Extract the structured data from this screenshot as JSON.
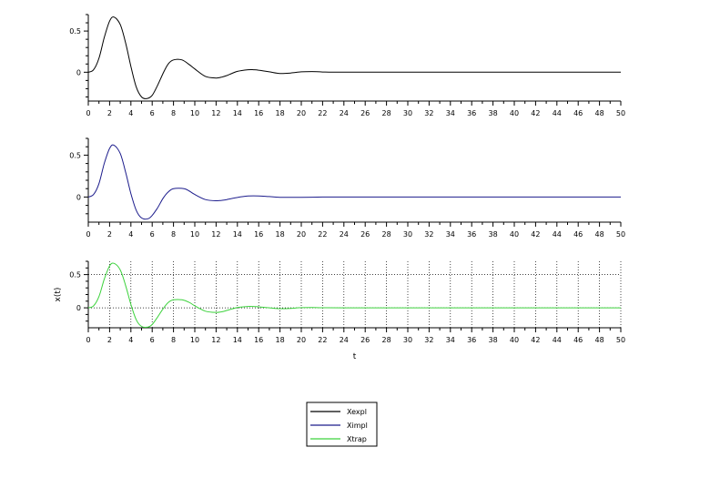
{
  "figure": {
    "legend": {
      "placement": "bottom-center",
      "entries": [
        {
          "label": "Xexpl",
          "color": "#000000"
        },
        {
          "label": "Ximpl",
          "color": "#1c1c8c"
        },
        {
          "label": "Xtrap",
          "color": "#3cd23c"
        }
      ]
    }
  },
  "chart_data": [
    {
      "type": "line",
      "title": "",
      "xlabel": "",
      "ylabel": "",
      "xlim": [
        0,
        50
      ],
      "ylim": [
        -0.35,
        0.7
      ],
      "xticks": [
        0,
        2,
        4,
        6,
        8,
        10,
        12,
        14,
        16,
        18,
        20,
        22,
        24,
        26,
        28,
        30,
        32,
        34,
        36,
        38,
        40,
        42,
        44,
        46,
        48,
        50
      ],
      "yticks": [
        0.5,
        0,
        -0.5
      ],
      "ytick_labels": [
        "0.5",
        "0",
        ""
      ],
      "grid": false,
      "series": [
        {
          "name": "Xexpl",
          "color": "#000000",
          "x": [
            0,
            0.5,
            1,
            1.5,
            2,
            2.4,
            3,
            3.5,
            4,
            4.5,
            5,
            5.5,
            6,
            6.5,
            7,
            7.5,
            8,
            8.8,
            9.5,
            10,
            11,
            12,
            12.5,
            13,
            14,
            15,
            15.5,
            16,
            17,
            18,
            19,
            20,
            21,
            22,
            24,
            30,
            40,
            50
          ],
          "y": [
            0,
            0.03,
            0.17,
            0.42,
            0.62,
            0.67,
            0.58,
            0.36,
            0.07,
            -0.18,
            -0.3,
            -0.32,
            -0.28,
            -0.16,
            -0.02,
            0.1,
            0.15,
            0.15,
            0.09,
            0.04,
            -0.05,
            -0.07,
            -0.06,
            -0.04,
            0.01,
            0.03,
            0.03,
            0.025,
            0.005,
            -0.015,
            -0.01,
            0.005,
            0.008,
            0.003,
            0,
            0,
            0,
            0
          ]
        }
      ]
    },
    {
      "type": "line",
      "title": "",
      "xlabel": "",
      "ylabel": "",
      "xlim": [
        0,
        50
      ],
      "ylim": [
        -0.3,
        0.7
      ],
      "xticks": [
        0,
        2,
        4,
        6,
        8,
        10,
        12,
        14,
        16,
        18,
        20,
        22,
        24,
        26,
        28,
        30,
        32,
        34,
        36,
        38,
        40,
        42,
        44,
        46,
        48,
        50
      ],
      "yticks": [
        0.5,
        0
      ],
      "ytick_labels": [
        "0.5",
        "0"
      ],
      "grid": false,
      "series": [
        {
          "name": "Ximpl",
          "color": "#1c1c8c",
          "x": [
            0,
            0.5,
            1,
            1.5,
            2,
            2.4,
            3,
            3.5,
            4,
            4.5,
            5,
            5.6,
            6,
            6.5,
            7,
            7.5,
            8,
            9,
            9.5,
            10,
            11,
            12,
            12.5,
            13,
            14,
            15,
            16,
            17,
            18,
            20,
            22,
            24,
            30,
            40,
            50
          ],
          "y": [
            0,
            0.03,
            0.16,
            0.4,
            0.58,
            0.62,
            0.52,
            0.3,
            0.04,
            -0.16,
            -0.25,
            -0.26,
            -0.22,
            -0.13,
            -0.02,
            0.06,
            0.1,
            0.1,
            0.07,
            0.03,
            -0.03,
            -0.045,
            -0.04,
            -0.03,
            -0.005,
            0.012,
            0.013,
            0.005,
            -0.003,
            -0.004,
            0,
            0,
            0,
            0,
            0
          ]
        }
      ]
    },
    {
      "type": "line",
      "title": "",
      "xlabel": "t",
      "ylabel": "x(t)",
      "xlim": [
        0,
        50
      ],
      "ylim": [
        -0.3,
        0.7
      ],
      "xticks": [
        0,
        2,
        4,
        6,
        8,
        10,
        12,
        14,
        16,
        18,
        20,
        22,
        24,
        26,
        28,
        30,
        32,
        34,
        36,
        38,
        40,
        42,
        44,
        46,
        48,
        50
      ],
      "yticks": [
        0.5,
        0
      ],
      "ytick_labels": [
        "0.5",
        "0"
      ],
      "grid": true,
      "series": [
        {
          "name": "Xtrap",
          "color": "#3cd23c",
          "x": [
            0,
            0.5,
            1,
            1.5,
            2,
            2.4,
            3,
            3.5,
            4,
            4.5,
            5,
            5.6,
            6,
            6.5,
            7,
            7.5,
            8,
            8.8,
            9.5,
            10,
            11,
            12,
            12.5,
            13,
            14,
            15,
            15.5,
            16,
            17,
            18,
            19,
            20,
            21,
            22,
            24,
            30,
            40,
            50
          ],
          "y": [
            0,
            0.03,
            0.17,
            0.43,
            0.63,
            0.67,
            0.57,
            0.34,
            0.05,
            -0.18,
            -0.28,
            -0.29,
            -0.25,
            -0.14,
            -0.02,
            0.08,
            0.12,
            0.12,
            0.08,
            0.03,
            -0.05,
            -0.07,
            -0.06,
            -0.04,
            0.005,
            0.02,
            0.02,
            0.015,
            0.0,
            -0.012,
            -0.008,
            0.003,
            0.005,
            0.002,
            0,
            0,
            0,
            0
          ]
        }
      ]
    }
  ]
}
